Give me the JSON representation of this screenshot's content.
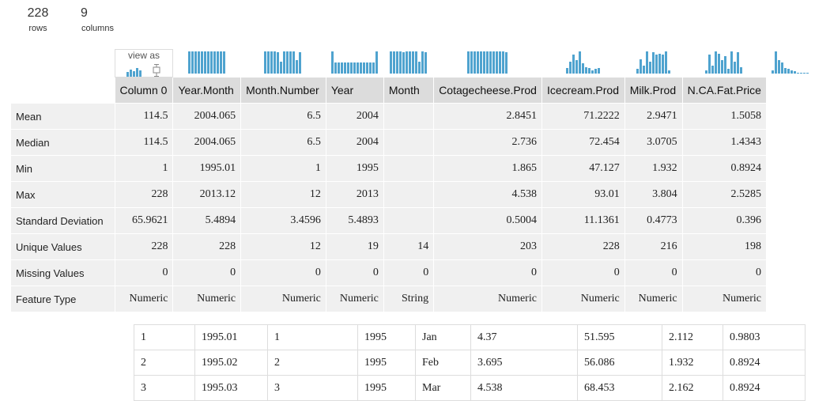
{
  "summary": {
    "rows_value": "228",
    "rows_label": "rows",
    "columns_value": "9",
    "columns_label": "columns"
  },
  "view_as": {
    "label": "view as",
    "histogram_icon": "bar-chart-icon",
    "boxplot_icon": "box-plot-icon"
  },
  "accent_color": "#4fa3cf",
  "columns": [
    {
      "name": "Column 0",
      "hist": [
        1,
        1,
        1,
        1,
        1,
        1,
        1,
        1,
        1,
        1,
        1,
        1
      ]
    },
    {
      "name": "Year.Month",
      "hist": [
        1,
        1,
        1,
        1,
        0.95,
        0.55,
        1,
        1,
        1,
        1,
        0.6,
        0.95
      ]
    },
    {
      "name": "Month.Number",
      "hist": [
        1,
        0.5,
        0.5,
        0.5,
        0.5,
        0.5,
        0.5,
        0.5,
        0.5,
        0.5,
        0.5,
        0.5,
        0.5,
        0.5,
        1
      ]
    },
    {
      "name": "Year",
      "hist": [
        1,
        1,
        1,
        1,
        0.95,
        1,
        1,
        1,
        1,
        0.55,
        1,
        0.95
      ]
    },
    {
      "name": "Month",
      "hist": [
        1,
        1,
        1,
        1,
        1,
        1,
        1,
        1,
        1,
        1,
        1,
        1,
        0.95
      ]
    },
    {
      "name": "Cotagecheese.Prod",
      "hist": [
        0.25,
        0.55,
        0.85,
        0.6,
        1,
        0.45,
        0.3,
        0.25,
        0.15,
        0.2,
        0.25
      ]
    },
    {
      "name": "Icecream.Prod",
      "hist": [
        0.2,
        0.65,
        0.35,
        1,
        0.55,
        0.95,
        0.85,
        0.9,
        0.85,
        1,
        0.15
      ]
    },
    {
      "name": "Milk.Prod",
      "hist": [
        0.15,
        0.85,
        0.35,
        1,
        0.9,
        0.6,
        0.8,
        0.2,
        1,
        0.55,
        0.95,
        0.3
      ]
    },
    {
      "name": "N.CA.Fat.Price",
      "hist": [
        0.15,
        1,
        0.6,
        0.5,
        0.25,
        0.2,
        0.15,
        0.1,
        0.05,
        0.05,
        0.05,
        0.05
      ]
    }
  ],
  "stats": [
    {
      "label": "Mean",
      "values": [
        "114.5",
        "2004.065",
        "6.5",
        "2004",
        "",
        "2.8451",
        "71.2222",
        "2.9471",
        "1.5058"
      ]
    },
    {
      "label": "Median",
      "values": [
        "114.5",
        "2004.065",
        "6.5",
        "2004",
        "",
        "2.736",
        "72.454",
        "3.0705",
        "1.4343"
      ]
    },
    {
      "label": "Min",
      "values": [
        "1",
        "1995.01",
        "1",
        "1995",
        "",
        "1.865",
        "47.127",
        "1.932",
        "0.8924"
      ]
    },
    {
      "label": "Max",
      "values": [
        "228",
        "2013.12",
        "12",
        "2013",
        "",
        "4.538",
        "93.01",
        "3.804",
        "2.5285"
      ]
    },
    {
      "label": "Standard Deviation",
      "values": [
        "65.9621",
        "5.4894",
        "3.4596",
        "5.4893",
        "",
        "0.5004",
        "11.1361",
        "0.4773",
        "0.396"
      ]
    },
    {
      "label": "Unique Values",
      "values": [
        "228",
        "228",
        "12",
        "19",
        "14",
        "203",
        "228",
        "216",
        "198"
      ]
    },
    {
      "label": "Missing Values",
      "values": [
        "0",
        "0",
        "0",
        "0",
        "0",
        "0",
        "0",
        "0",
        "0"
      ]
    },
    {
      "label": "Feature Type",
      "values": [
        "Numeric",
        "Numeric",
        "Numeric",
        "Numeric",
        "String",
        "Numeric",
        "Numeric",
        "Numeric",
        "Numeric"
      ]
    }
  ],
  "rows": [
    [
      "1",
      "1995.01",
      "1",
      "1995",
      "Jan",
      "4.37",
      "51.595",
      "2.112",
      "0.9803"
    ],
    [
      "2",
      "1995.02",
      "2",
      "1995",
      "Feb",
      "3.695",
      "56.086",
      "1.932",
      "0.8924"
    ],
    [
      "3",
      "1995.03",
      "3",
      "1995",
      "Mar",
      "4.538",
      "68.453",
      "2.162",
      "0.8924"
    ]
  ]
}
